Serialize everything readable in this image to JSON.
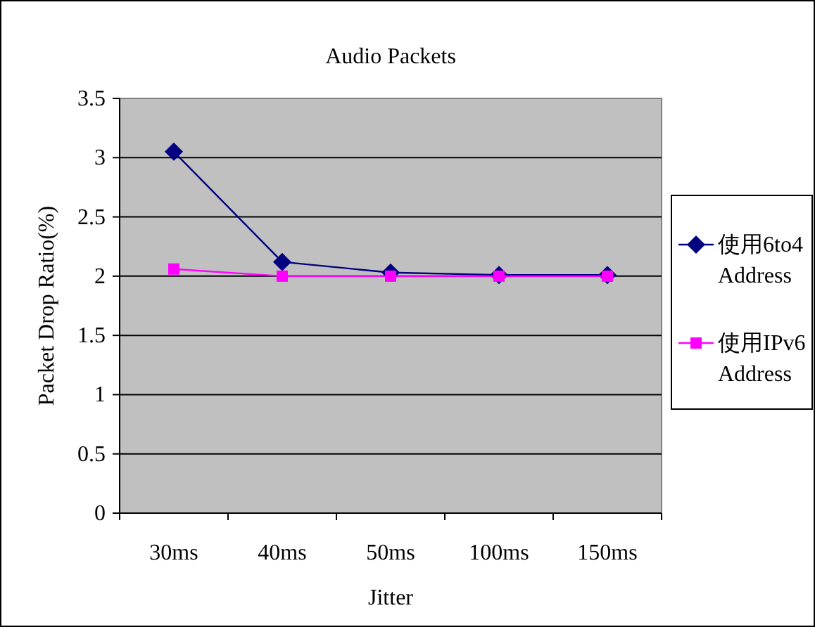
{
  "chart_data": {
    "type": "line",
    "title": "Audio Packets",
    "xlabel": "Jitter",
    "ylabel": "Packet Drop Ratio(%)",
    "categories": [
      "30ms",
      "40ms",
      "50ms",
      "100ms",
      "150ms"
    ],
    "series": [
      {
        "name": "使用6to4 Address",
        "color": "#000080",
        "marker": "diamond",
        "values": [
          3.05,
          2.12,
          2.03,
          2.01,
          2.01
        ]
      },
      {
        "name": "使用IPv6 Address",
        "color": "#ff00ff",
        "marker": "square",
        "values": [
          2.06,
          2.0,
          2.0,
          2.0,
          2.0
        ]
      }
    ],
    "ylim": [
      0,
      3.5
    ],
    "yticks": [
      0,
      0.5,
      1,
      1.5,
      2,
      2.5,
      3,
      3.5
    ],
    "grid": "y",
    "legend": "right",
    "line_style": "solid"
  }
}
